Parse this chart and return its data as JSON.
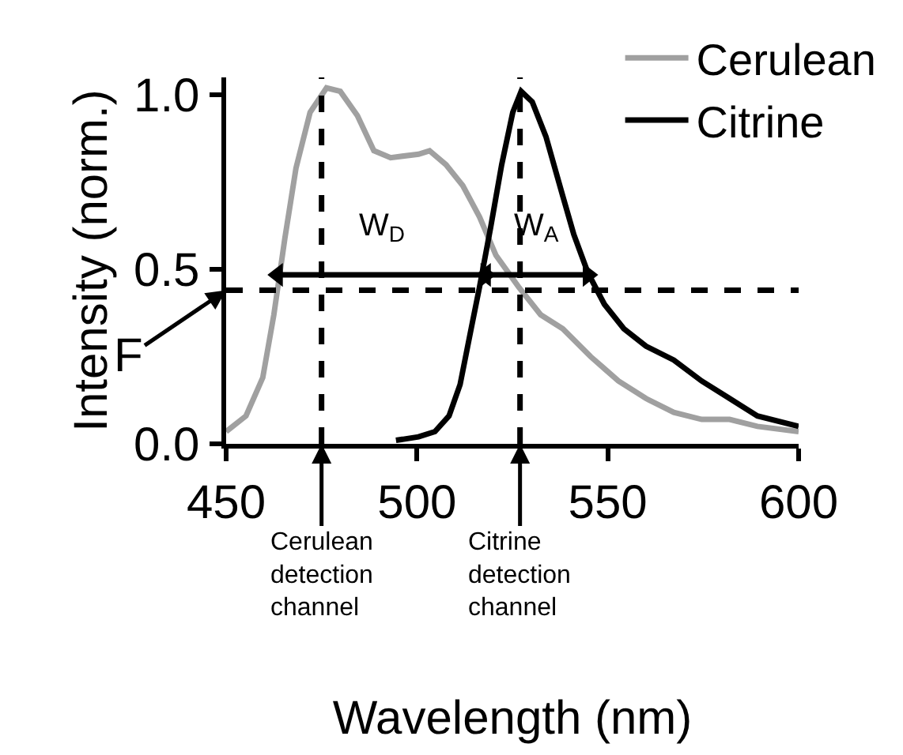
{
  "chart_data": {
    "type": "line",
    "xlabel": "Wavelength (nm)",
    "ylabel": "Intensity (norm.)",
    "xlim": [
      450,
      600
    ],
    "xticks": [
      450,
      500,
      550,
      600
    ],
    "ylim": [
      0,
      1.05
    ],
    "yticks": [
      {
        "value": 0,
        "label": "0.0"
      },
      {
        "value": 0.5,
        "label": "0.5"
      },
      {
        "value": 1,
        "label": "1.0"
      }
    ],
    "legend": "top right",
    "line_style": "solid",
    "marker": "none",
    "series": [
      {
        "name": "Cerulean",
        "color": "#a0a0a0",
        "x": [
          450,
          455.2,
          459.6,
          462.5,
          465.4,
          468.3,
          472,
          476.3,
          479.9,
          484.4,
          488.7,
          493.1,
          500.4,
          503.3,
          507.6,
          512,
          516.4,
          520.7,
          526.6,
          532.4,
          538.2,
          545.5,
          552.8,
          560,
          567.3,
          574.6,
          581.9,
          589.2,
          600
        ],
        "values": [
          0.035,
          0.08,
          0.19,
          0.37,
          0.59,
          0.79,
          0.95,
          1.02,
          1.01,
          0.94,
          0.84,
          0.82,
          0.83,
          0.84,
          0.8,
          0.74,
          0.65,
          0.54,
          0.45,
          0.37,
          0.33,
          0.25,
          0.18,
          0.13,
          0.09,
          0.07,
          0.07,
          0.05,
          0.035
        ]
      },
      {
        "name": "Citrine",
        "color": "#000000",
        "x": [
          494.5,
          500.4,
          504.7,
          508.4,
          511.3,
          514.2,
          516.4,
          519.3,
          522.2,
          525.1,
          527.3,
          530.2,
          533.8,
          538.2,
          541.1,
          544.8,
          549.1,
          554.2,
          560,
          567.3,
          574.6,
          581.9,
          589.2,
          600
        ],
        "values": [
          0.01,
          0.02,
          0.035,
          0.08,
          0.17,
          0.33,
          0.45,
          0.62,
          0.8,
          0.95,
          1.01,
          0.98,
          0.88,
          0.71,
          0.6,
          0.49,
          0.4,
          0.33,
          0.28,
          0.24,
          0.18,
          0.13,
          0.08,
          0.05
        ]
      },
      {
        "color": "#000000",
        "marker": "triangle",
        "x": [
          463.5,
          518
        ],
        "values": [
          0.484,
          0.484
        ]
      },
      {
        "color": "#000000",
        "marker": "triangle",
        "x": [
          518,
          544.8
        ],
        "values": [
          0.484,
          0.484
        ]
      }
    ],
    "ref_lines": [
      {
        "axis": "x",
        "value": 475,
        "color": "#000000",
        "line_style": "dashed"
      },
      {
        "axis": "x",
        "value": 527,
        "color": "#000000",
        "line_style": "dashed"
      },
      {
        "axis": "y",
        "value": 0.44,
        "color": "#000000",
        "line_style": "dashed"
      }
    ],
    "annotations": [
      "W$_{D}$",
      "W$_{A}$",
      {
        "text": "F",
        "x": 450,
        "y": 0.44
      },
      {
        "text": "Cerulean\ndetection\nchannel",
        "x": 475,
        "y": 0
      },
      {
        "text": "Citrine\ndetection\nchannel",
        "x": 527,
        "y": 0
      }
    ]
  }
}
